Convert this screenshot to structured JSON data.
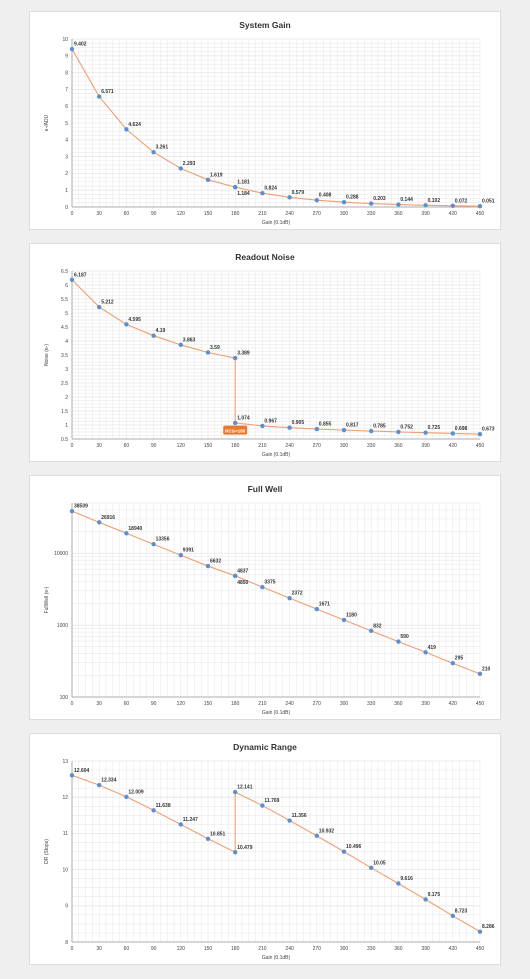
{
  "colors": {
    "line": "#ef9f71",
    "point": "#5b8fd0",
    "grid": "#e6e6e6",
    "badge": "#ec7a2e"
  },
  "chart_data": [
    {
      "type": "line",
      "title": "System Gain",
      "xlabel": "Gain (0.1dB)",
      "ylabel": "e-/ADU",
      "x": [
        0,
        30,
        60,
        90,
        120,
        150,
        180,
        180,
        210,
        240,
        270,
        300,
        330,
        360,
        390,
        420,
        450
      ],
      "values": [
        9.402,
        6.571,
        4.624,
        3.261,
        2.293,
        1.619,
        1.181,
        1.184,
        0.824,
        0.579,
        0.408,
        0.288,
        0.203,
        0.144,
        0.102,
        0.072,
        0.051
      ],
      "labels": [
        "9.402",
        "6.571",
        "4.624",
        "3.261",
        "2.293",
        "1.619",
        "1.181",
        "1.184",
        "0.824",
        "0.579",
        "0.408",
        "0.288",
        "0.203",
        "0.144",
        "0.102",
        "0.072",
        "0.051"
      ],
      "xticks": [
        "0",
        "30",
        "60",
        "90",
        "120",
        "150",
        "180",
        "210",
        "240",
        "270",
        "300",
        "330",
        "360",
        "390",
        "420",
        "450"
      ],
      "yticks": [
        "0",
        "1",
        "2",
        "3",
        "4",
        "5",
        "6",
        "7",
        "8",
        "9",
        "10"
      ],
      "xlim": [
        0,
        450
      ],
      "ylim": [
        0,
        10
      ],
      "log": false,
      "label_below": [
        7
      ]
    },
    {
      "type": "line",
      "title": "Readout Noise",
      "xlabel": "Gain (0.1dB)",
      "ylabel": "Noise (e-)",
      "x": [
        0,
        30,
        60,
        90,
        120,
        150,
        180,
        180,
        210,
        240,
        270,
        300,
        330,
        360,
        390,
        420,
        450
      ],
      "values": [
        6.187,
        5.212,
        4.595,
        4.19,
        3.863,
        3.59,
        3.389,
        1.074,
        0.967,
        0.905,
        0.855,
        0.817,
        0.785,
        0.752,
        0.725,
        0.698,
        0.673
      ],
      "labels": [
        "6.187",
        "5.212",
        "4.595",
        "4.19",
        "3.863",
        "3.59",
        "3.389",
        "1.074",
        "0.967",
        "0.905",
        "0.855",
        "0.817",
        "0.785",
        "0.752",
        "0.725",
        "0.698",
        "0.673"
      ],
      "xticks": [
        "0",
        "30",
        "60",
        "90",
        "120",
        "150",
        "180",
        "210",
        "240",
        "270",
        "300",
        "330",
        "360",
        "390",
        "420",
        "450"
      ],
      "yticks": [
        "0.5",
        "1",
        "1.5",
        "2",
        "2.5",
        "3",
        "3.5",
        "4",
        "4.5",
        "5",
        "5.5",
        "6",
        "6.5"
      ],
      "xlim": [
        0,
        450
      ],
      "ylim": [
        0.5,
        6.5
      ],
      "log": false,
      "annotation": {
        "text": "HCG=180",
        "x": 180,
        "y": 0.8
      },
      "label_below": []
    },
    {
      "type": "line",
      "title": "Full Well",
      "xlabel": "Gain (0.1dB)",
      "ylabel": "FullWell (e-)",
      "x": [
        0,
        30,
        60,
        90,
        120,
        150,
        180,
        180,
        210,
        240,
        270,
        300,
        330,
        360,
        390,
        420,
        450
      ],
      "values": [
        38509,
        26916,
        18940,
        13356,
        9391,
        6632,
        4837,
        4850,
        3375,
        2372,
        1671,
        1180,
        832,
        590,
        419,
        295,
        210
      ],
      "labels": [
        "38509",
        "26916",
        "18940",
        "13356",
        "9391",
        "6632",
        "4837",
        "4850",
        "3375",
        "2372",
        "1671",
        "1180",
        "832",
        "590",
        "419",
        "295",
        "210"
      ],
      "xticks": [
        "0",
        "30",
        "60",
        "90",
        "120",
        "150",
        "180",
        "210",
        "240",
        "270",
        "300",
        "330",
        "360",
        "390",
        "420",
        "450"
      ],
      "yticks": [
        "100",
        "1000",
        "10000"
      ],
      "ytick_values": [
        100,
        1000,
        10000
      ],
      "xlim": [
        0,
        450
      ],
      "ylim": [
        100,
        50000
      ],
      "log": true,
      "label_below": [
        7
      ]
    },
    {
      "type": "line",
      "title": "Dynamic Range",
      "xlabel": "Gain (0.1dB)",
      "ylabel": "DR (Stops)",
      "x": [
        0,
        30,
        60,
        90,
        120,
        150,
        180,
        180,
        210,
        240,
        270,
        300,
        330,
        360,
        390,
        420,
        450
      ],
      "values": [
        12.604,
        12.334,
        12.009,
        11.638,
        11.247,
        10.851,
        10.479,
        12.141,
        11.769,
        11.356,
        10.932,
        10.496,
        10.05,
        9.616,
        9.175,
        8.723,
        8.286
      ],
      "labels": [
        "12.604",
        "12.334",
        "12.009",
        "11.638",
        "11.247",
        "10.851",
        "10.479",
        "12.141",
        "11.769",
        "11.356",
        "10.932",
        "10.496",
        "10.05",
        "9.616",
        "9.175",
        "8.723",
        "8.286"
      ],
      "xticks": [
        "0",
        "30",
        "60",
        "90",
        "120",
        "150",
        "180",
        "210",
        "240",
        "270",
        "300",
        "330",
        "360",
        "390",
        "420",
        "450"
      ],
      "yticks": [
        "8",
        "9",
        "10",
        "11",
        "12",
        "13"
      ],
      "xlim": [
        0,
        450
      ],
      "ylim": [
        8,
        13
      ],
      "log": false,
      "label_below": []
    }
  ]
}
